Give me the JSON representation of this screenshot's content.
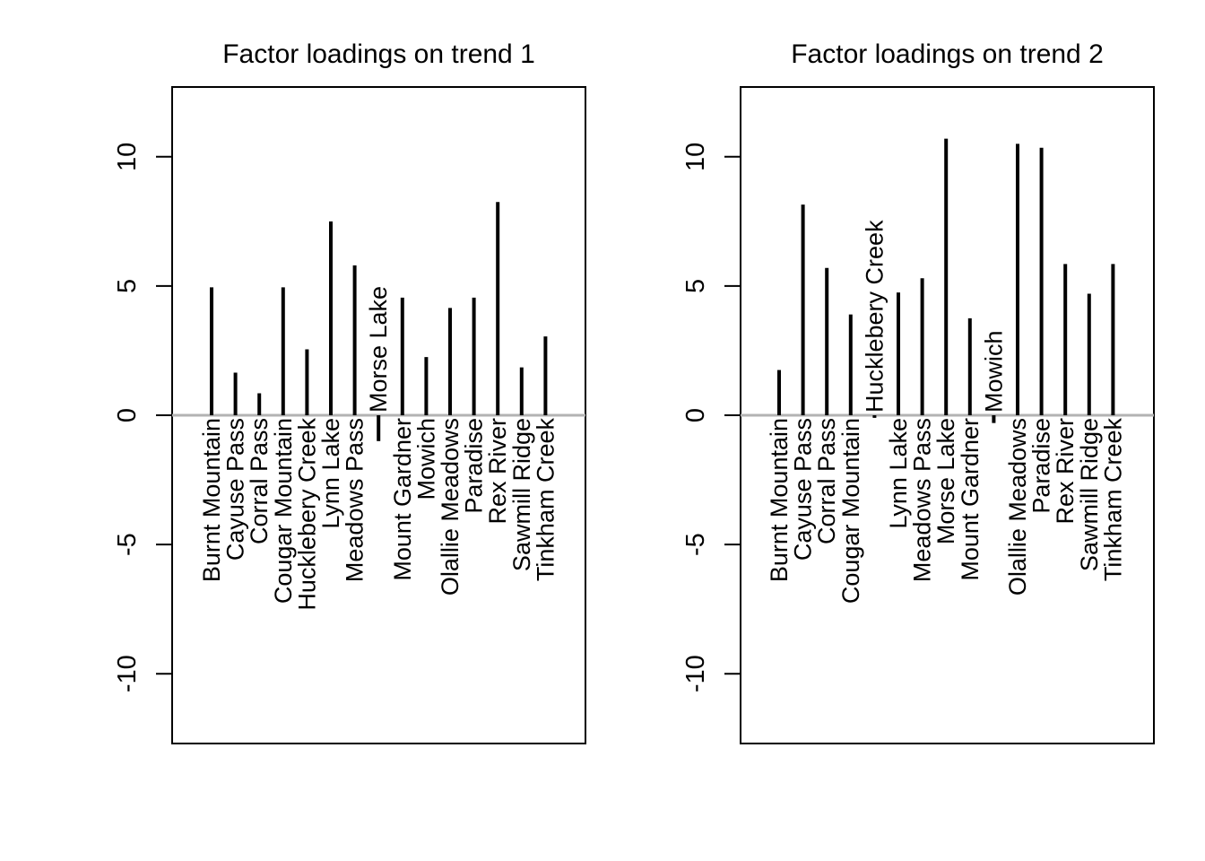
{
  "chart_data": [
    {
      "type": "bar",
      "title": "Factor loadings on trend 1",
      "xlabel": "",
      "ylabel": "",
      "ylim": [
        -12.7,
        12.7
      ],
      "yticks": [
        "-10",
        "-5",
        "0",
        "5",
        "10"
      ],
      "categories": [
        "Burnt Mountain",
        "Cayuse Pass",
        "Corral Pass",
        "Cougar Mountain",
        "Hucklebery Creek",
        "Lynn Lake",
        "Meadows Pass",
        "Morse Lake",
        "Mount Gardner",
        "Mowich",
        "Olallie Meadows",
        "Paradise",
        "Rex River",
        "Sawmill Ridge",
        "Tinkham Creek"
      ],
      "values": [
        4.95,
        1.65,
        0.85,
        4.95,
        2.55,
        7.5,
        5.8,
        -1.0,
        4.55,
        2.25,
        4.15,
        4.55,
        8.25,
        1.85,
        3.05
      ],
      "bar_color": "#000000",
      "zero_line_color": "#b3b3b3",
      "grid": false
    },
    {
      "type": "bar",
      "title": "Factor loadings on trend 2",
      "xlabel": "",
      "ylabel": "",
      "ylim": [
        -12.7,
        12.7
      ],
      "yticks": [
        "-10",
        "-5",
        "0",
        "5",
        "10"
      ],
      "categories": [
        "Burnt Mountain",
        "Cayuse Pass",
        "Corral Pass",
        "Cougar Mountain",
        "Hucklebery Creek",
        "Lynn Lake",
        "Meadows Pass",
        "Morse Lake",
        "Mount Gardner",
        "Mowich",
        "Olallie Meadows",
        "Paradise",
        "Rex River",
        "Sawmill Ridge",
        "Tinkham Creek"
      ],
      "values": [
        1.75,
        8.15,
        5.7,
        3.9,
        -0.1,
        4.75,
        5.3,
        10.7,
        3.75,
        -0.3,
        10.5,
        10.35,
        5.85,
        4.7,
        5.85
      ],
      "bar_color": "#000000",
      "zero_line_color": "#b3b3b3",
      "grid": false
    }
  ]
}
